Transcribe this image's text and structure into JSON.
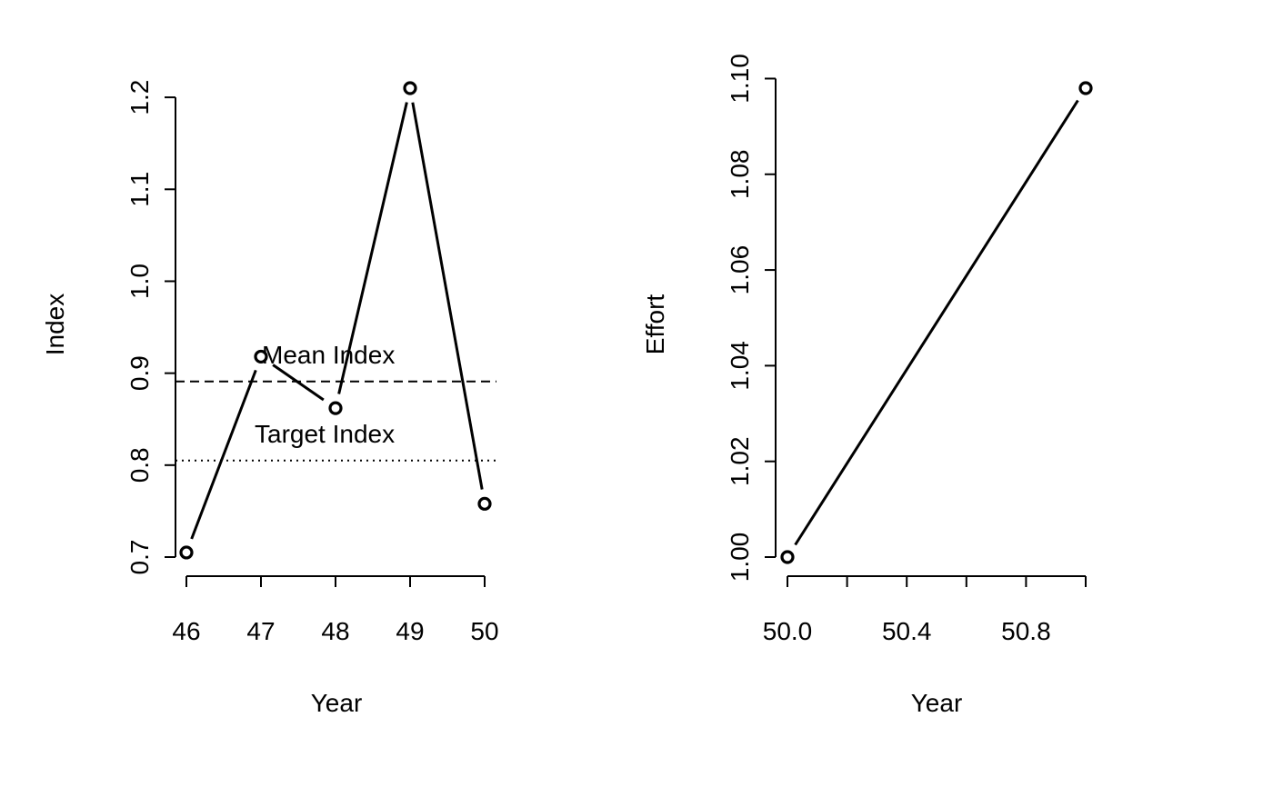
{
  "chart_data": [
    {
      "type": "line",
      "xlabel": "Year",
      "ylabel": "Index",
      "xlim": [
        46,
        50
      ],
      "ylim": [
        0.7,
        1.21
      ],
      "x_ticks": [
        "46",
        "47",
        "48",
        "49",
        "50"
      ],
      "y_ticks": [
        "0.7",
        "0.8",
        "0.9",
        "1.0",
        "1.1",
        "1.2"
      ],
      "series": [
        {
          "x": [
            46,
            47,
            48,
            49,
            50
          ],
          "values": [
            0.705,
            0.918,
            0.862,
            1.21,
            0.758
          ]
        }
      ],
      "reference_lines": [
        {
          "label": "Mean Index",
          "y": 0.891,
          "style": "dashed"
        },
        {
          "label": "Target Index",
          "y": 0.805,
          "style": "dotted"
        }
      ]
    },
    {
      "type": "line",
      "xlabel": "Year",
      "ylabel": "Effort",
      "xlim": [
        50.0,
        51.0
      ],
      "ylim": [
        1.0,
        1.098
      ],
      "x_ticks": [
        "50.0",
        "",
        "50.4",
        "",
        "50.8",
        ""
      ],
      "y_ticks": [
        "1.00",
        "1.02",
        "1.04",
        "1.06",
        "1.08",
        "1.10"
      ],
      "series": [
        {
          "x": [
            50.0,
            51.0
          ],
          "values": [
            1.0,
            1.098
          ]
        }
      ]
    }
  ]
}
